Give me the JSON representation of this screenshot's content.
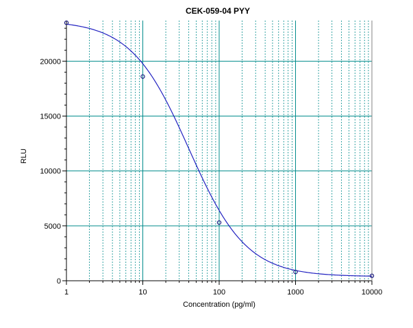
{
  "chart_data": {
    "type": "scatter",
    "title": "CEK-059-04 PYY",
    "xlabel": "Concentration (pg/ml)",
    "ylabel": "RLU",
    "x_scale": "log",
    "xlim": [
      1,
      10000
    ],
    "ylim": [
      0,
      23700
    ],
    "grid": true,
    "x_tick_labels": [
      "1",
      "10",
      "100",
      "1000",
      "10000"
    ],
    "y_tick_labels": [
      "0",
      "5000",
      "10000",
      "15000",
      "20000"
    ],
    "series": [
      {
        "points": [
          {
            "x": 1,
            "y": 23500
          },
          {
            "x": 10,
            "y": 18600
          },
          {
            "x": 100,
            "y": 5300
          },
          {
            "x": 1000,
            "y": 800
          },
          {
            "x": 10000,
            "y": 450
          }
        ]
      }
    ],
    "fit_curve": {
      "model": "4PL",
      "top": 23700,
      "bottom": 380,
      "ec50": 40,
      "hill": 1.15
    },
    "colors": {
      "curve": "#2020c0",
      "points": "#1a1a80",
      "grid": "#008b8b",
      "axis": "#000000"
    }
  }
}
